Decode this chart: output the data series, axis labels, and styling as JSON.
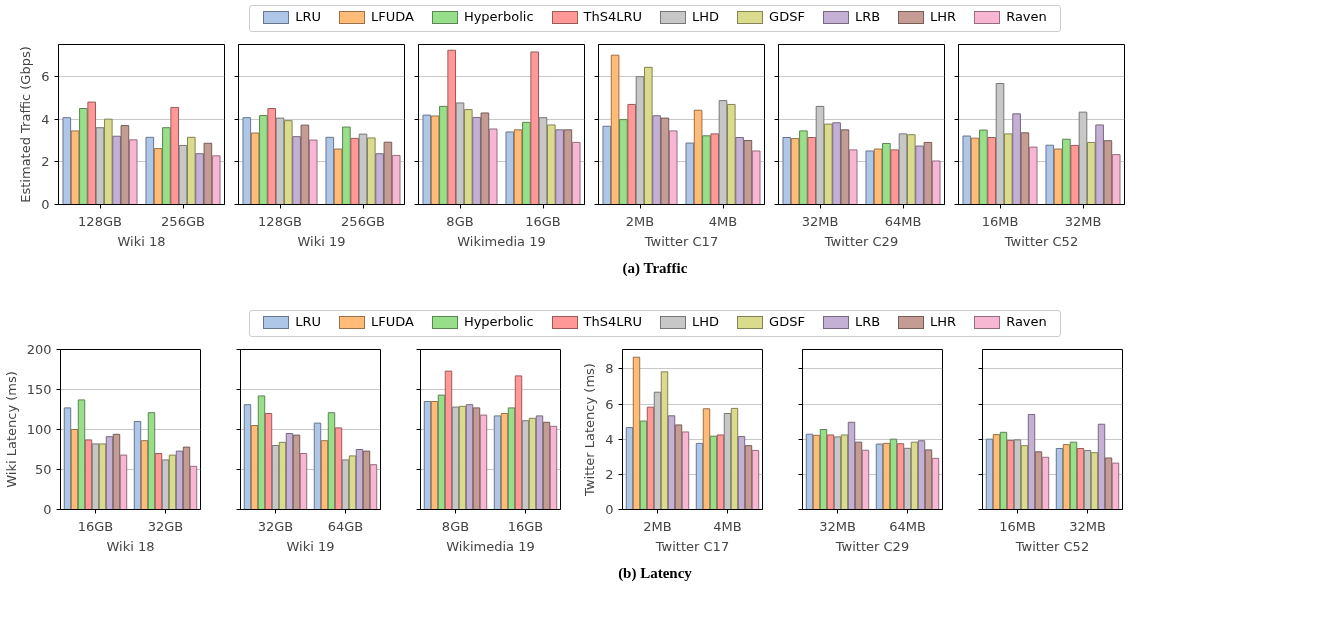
{
  "chart_data": [
    {
      "type": "bar",
      "xlabel": "Wiki 18",
      "ylabel": "Estimated Traffic (Gbps)",
      "categories": [
        "128GB",
        "256GB"
      ],
      "ylim": [
        0,
        7.5
      ],
      "yticks": [
        0,
        2,
        4,
        6
      ],
      "grid": "y",
      "legend": "top",
      "annotations": [
        "(a) Traffic"
      ],
      "series": [
        {
          "name": "LRU",
          "color": "#aec7e8",
          "values": [
            4.07,
            3.15
          ]
        },
        {
          "name": "LFUDA",
          "color": "#ffbb78",
          "values": [
            3.45,
            2.62
          ]
        },
        {
          "name": "Hyperbolic",
          "color": "#98df8a",
          "values": [
            4.5,
            3.6
          ]
        },
        {
          "name": "ThS4LRU",
          "color": "#ff9896",
          "values": [
            4.8,
            4.55
          ]
        },
        {
          "name": "LHD",
          "color": "#c7c7c7",
          "values": [
            3.6,
            2.77
          ]
        },
        {
          "name": "GDSF",
          "color": "#dbdb8d",
          "values": [
            4.0,
            3.15
          ]
        },
        {
          "name": "LRB",
          "color": "#c5b0d5",
          "values": [
            3.2,
            2.38
          ]
        },
        {
          "name": "LHR",
          "color": "#c49c94",
          "values": [
            3.7,
            2.87
          ]
        },
        {
          "name": "Raven",
          "color": "#f7b6d2",
          "values": [
            3.03,
            2.28
          ]
        }
      ]
    },
    {
      "type": "bar",
      "xlabel": "Wiki 19",
      "categories": [
        "128GB",
        "256GB"
      ],
      "ylim": [
        0,
        7.5
      ],
      "yticks": [
        0,
        2,
        4,
        6
      ],
      "grid": "y",
      "tick_labels": "x",
      "series": [
        {
          "color": "#aec7e8",
          "values": [
            4.07,
            3.15
          ]
        },
        {
          "color": "#ffbb78",
          "values": [
            3.35,
            2.6
          ]
        },
        {
          "color": "#98df8a",
          "values": [
            4.17,
            3.63
          ]
        },
        {
          "color": "#ff9896",
          "values": [
            4.5,
            3.1
          ]
        },
        {
          "color": "#c7c7c7",
          "values": [
            4.05,
            3.3
          ]
        },
        {
          "color": "#dbdb8d",
          "values": [
            3.93,
            3.12
          ]
        },
        {
          "color": "#c5b0d5",
          "values": [
            3.18,
            2.38
          ]
        },
        {
          "color": "#c49c94",
          "values": [
            3.72,
            2.92
          ]
        },
        {
          "color": "#f7b6d2",
          "values": [
            3.02,
            2.3
          ]
        }
      ]
    },
    {
      "type": "bar",
      "xlabel": "Wikimedia 19",
      "categories": [
        "8GB",
        "16GB"
      ],
      "ylim": [
        0,
        7.5
      ],
      "yticks": [
        0,
        2,
        4,
        6
      ],
      "grid": "y",
      "tick_labels": "x",
      "series": [
        {
          "color": "#aec7e8",
          "values": [
            4.19,
            3.4
          ]
        },
        {
          "color": "#ffbb78",
          "values": [
            4.15,
            3.5
          ]
        },
        {
          "color": "#98df8a",
          "values": [
            4.6,
            3.85
          ]
        },
        {
          "color": "#ff9896",
          "values": [
            7.23,
            7.15
          ]
        },
        {
          "color": "#c7c7c7",
          "values": [
            4.76,
            4.07
          ]
        },
        {
          "color": "#dbdb8d",
          "values": [
            4.45,
            3.73
          ]
        },
        {
          "color": "#c5b0d5",
          "values": [
            4.08,
            3.5
          ]
        },
        {
          "color": "#c49c94",
          "values": [
            4.29,
            3.5
          ]
        },
        {
          "color": "#f7b6d2",
          "values": [
            3.54,
            2.91
          ]
        }
      ]
    },
    {
      "type": "bar",
      "xlabel": "Twitter C17",
      "categories": [
        "2MB",
        "4MB"
      ],
      "ylim": [
        0,
        7.5
      ],
      "yticks": [
        0,
        2,
        4,
        6
      ],
      "grid": "y",
      "tick_labels": "x",
      "series": [
        {
          "color": "#aec7e8",
          "values": [
            3.67,
            2.88
          ]
        },
        {
          "color": "#ffbb78",
          "values": [
            7.0,
            4.42
          ]
        },
        {
          "color": "#98df8a",
          "values": [
            3.98,
            3.22
          ]
        },
        {
          "color": "#ff9896",
          "values": [
            4.69,
            3.31
          ]
        },
        {
          "color": "#c7c7c7",
          "values": [
            5.99,
            4.87
          ]
        },
        {
          "color": "#dbdb8d",
          "values": [
            6.43,
            4.69
          ]
        },
        {
          "color": "#c5b0d5",
          "values": [
            4.16,
            3.14
          ]
        },
        {
          "color": "#c49c94",
          "values": [
            4.05,
            3.0
          ]
        },
        {
          "color": "#f7b6d2",
          "values": [
            3.45,
            2.51
          ]
        }
      ]
    },
    {
      "type": "bar",
      "xlabel": "Twitter C29",
      "categories": [
        "32MB",
        "64MB"
      ],
      "ylim": [
        0,
        7.5
      ],
      "yticks": [
        0,
        2,
        4,
        6
      ],
      "grid": "y",
      "tick_labels": "x",
      "series": [
        {
          "color": "#aec7e8",
          "values": [
            3.14,
            2.51
          ]
        },
        {
          "color": "#ffbb78",
          "values": [
            3.09,
            2.6
          ]
        },
        {
          "color": "#98df8a",
          "values": [
            3.45,
            2.86
          ]
        },
        {
          "color": "#ff9896",
          "values": [
            3.14,
            2.56
          ]
        },
        {
          "color": "#c7c7c7",
          "values": [
            4.6,
            3.31
          ]
        },
        {
          "color": "#dbdb8d",
          "values": [
            3.77,
            3.27
          ]
        },
        {
          "color": "#c5b0d5",
          "values": [
            3.83,
            2.74
          ]
        },
        {
          "color": "#c49c94",
          "values": [
            3.5,
            2.91
          ]
        },
        {
          "color": "#f7b6d2",
          "values": [
            2.56,
            2.04
          ]
        }
      ]
    },
    {
      "type": "bar",
      "xlabel": "Twitter C52",
      "categories": [
        "16MB",
        "32MB"
      ],
      "ylim": [
        0,
        7.5
      ],
      "yticks": [
        0,
        2,
        4,
        6
      ],
      "grid": "y",
      "tick_labels": "x",
      "series": [
        {
          "color": "#aec7e8",
          "values": [
            3.21,
            2.78
          ]
        },
        {
          "color": "#ffbb78",
          "values": [
            3.11,
            2.6
          ]
        },
        {
          "color": "#98df8a",
          "values": [
            3.49,
            3.06
          ]
        },
        {
          "color": "#ff9896",
          "values": [
            3.14,
            2.77
          ]
        },
        {
          "color": "#c7c7c7",
          "values": [
            5.67,
            4.33
          ]
        },
        {
          "color": "#dbdb8d",
          "values": [
            3.31,
            2.91
          ]
        },
        {
          "color": "#c5b0d5",
          "values": [
            4.25,
            3.73
          ]
        },
        {
          "color": "#c49c94",
          "values": [
            3.36,
            2.99
          ]
        },
        {
          "color": "#f7b6d2",
          "values": [
            2.69,
            2.34
          ]
        }
      ]
    },
    {
      "type": "bar",
      "xlabel": "Wiki 18",
      "ylabel": "Wiki Latency (ms)",
      "categories": [
        "16GB",
        "32GB"
      ],
      "ylim": [
        0,
        200
      ],
      "yticks": [
        0,
        50,
        100,
        150,
        200
      ],
      "grid": "y",
      "legend": "top",
      "annotations": [
        "(b) Latency"
      ],
      "series": [
        {
          "name": "LRU",
          "color": "#aec7e8",
          "values": [
            127,
            110
          ]
        },
        {
          "name": "LFUDA",
          "color": "#ffbb78",
          "values": [
            100,
            86
          ]
        },
        {
          "name": "Hyperbolic",
          "color": "#98df8a",
          "values": [
            137,
            121
          ]
        },
        {
          "name": "ThS4LRU",
          "color": "#ff9896",
          "values": [
            87,
            70
          ]
        },
        {
          "name": "LHD",
          "color": "#c7c7c7",
          "values": [
            82,
            62
          ]
        },
        {
          "name": "GDSF",
          "color": "#dbdb8d",
          "values": [
            82,
            68
          ]
        },
        {
          "name": "LRB",
          "color": "#c5b0d5",
          "values": [
            91,
            73
          ]
        },
        {
          "name": "LHR",
          "color": "#c49c94",
          "values": [
            94,
            78
          ]
        },
        {
          "name": "Raven",
          "color": "#f7b6d2",
          "values": [
            68,
            54
          ]
        }
      ]
    },
    {
      "type": "bar",
      "xlabel": "Wiki 19",
      "categories": [
        "32GB",
        "64GB"
      ],
      "ylim": [
        0,
        200
      ],
      "yticks": [
        0,
        50,
        100,
        150,
        200
      ],
      "grid": "y",
      "tick_labels": "x",
      "series": [
        {
          "color": "#aec7e8",
          "values": [
            131,
            108
          ]
        },
        {
          "color": "#ffbb78",
          "values": [
            105,
            86
          ]
        },
        {
          "color": "#98df8a",
          "values": [
            142,
            121
          ]
        },
        {
          "color": "#ff9896",
          "values": [
            120,
            102
          ]
        },
        {
          "color": "#c7c7c7",
          "values": [
            80,
            62
          ]
        },
        {
          "color": "#dbdb8d",
          "values": [
            84,
            67
          ]
        },
        {
          "color": "#c5b0d5",
          "values": [
            95,
            75
          ]
        },
        {
          "color": "#c49c94",
          "values": [
            93,
            73
          ]
        },
        {
          "color": "#f7b6d2",
          "values": [
            70,
            56
          ]
        }
      ]
    },
    {
      "type": "bar",
      "xlabel": "Wikimedia 19",
      "categories": [
        "8GB",
        "16GB"
      ],
      "ylim": [
        0,
        200
      ],
      "yticks": [
        0,
        50,
        100,
        150,
        200
      ],
      "grid": "y",
      "tick_labels": "x",
      "series": [
        {
          "color": "#aec7e8",
          "values": [
            135,
            117
          ]
        },
        {
          "color": "#ffbb78",
          "values": [
            135,
            120
          ]
        },
        {
          "color": "#98df8a",
          "values": [
            143,
            127
          ]
        },
        {
          "color": "#ff9896",
          "values": [
            173,
            167
          ]
        },
        {
          "color": "#c7c7c7",
          "values": [
            128,
            111
          ]
        },
        {
          "color": "#dbdb8d",
          "values": [
            129,
            114
          ]
        },
        {
          "color": "#c5b0d5",
          "values": [
            131,
            117
          ]
        },
        {
          "color": "#c49c94",
          "values": [
            127,
            109
          ]
        },
        {
          "color": "#f7b6d2",
          "values": [
            118,
            104
          ]
        }
      ]
    },
    {
      "type": "bar",
      "xlabel": "Twitter C17",
      "ylabel": "Twitter Latency (ms)",
      "categories": [
        "2MB",
        "4MB"
      ],
      "ylim": [
        0,
        9.1
      ],
      "yticks": [
        0,
        2,
        4,
        6,
        8
      ],
      "grid": "y",
      "series": [
        {
          "color": "#aec7e8",
          "values": [
            4.66,
            3.76
          ]
        },
        {
          "color": "#ffbb78",
          "values": [
            8.66,
            5.73
          ]
        },
        {
          "color": "#98df8a",
          "values": [
            5.03,
            4.17
          ]
        },
        {
          "color": "#ff9896",
          "values": [
            5.82,
            4.24
          ]
        },
        {
          "color": "#c7c7c7",
          "values": [
            6.67,
            5.46
          ]
        },
        {
          "color": "#dbdb8d",
          "values": [
            7.83,
            5.75
          ]
        },
        {
          "color": "#c5b0d5",
          "values": [
            5.33,
            4.15
          ]
        },
        {
          "color": "#c49c94",
          "values": [
            4.81,
            3.63
          ]
        },
        {
          "color": "#f7b6d2",
          "values": [
            4.41,
            3.36
          ]
        }
      ]
    },
    {
      "type": "bar",
      "xlabel": "Twitter C29",
      "categories": [
        "32MB",
        "64MB"
      ],
      "ylim": [
        0,
        9.1
      ],
      "yticks": [
        0,
        2,
        4,
        6,
        8
      ],
      "grid": "y",
      "tick_labels": "x",
      "series": [
        {
          "color": "#aec7e8",
          "values": [
            4.28,
            3.72
          ]
        },
        {
          "color": "#ffbb78",
          "values": [
            4.22,
            3.76
          ]
        },
        {
          "color": "#98df8a",
          "values": [
            4.55,
            4.0
          ]
        },
        {
          "color": "#ff9896",
          "values": [
            4.24,
            3.74
          ]
        },
        {
          "color": "#c7c7c7",
          "values": [
            4.13,
            3.48
          ]
        },
        {
          "color": "#dbdb8d",
          "values": [
            4.24,
            3.83
          ]
        },
        {
          "color": "#c5b0d5",
          "values": [
            4.96,
            3.91
          ]
        },
        {
          "color": "#c49c94",
          "values": [
            3.83,
            3.39
          ]
        },
        {
          "color": "#f7b6d2",
          "values": [
            3.37,
            2.91
          ]
        }
      ]
    },
    {
      "type": "bar",
      "xlabel": "Twitter C52",
      "categories": [
        "16MB",
        "32MB"
      ],
      "ylim": [
        0,
        9.1
      ],
      "yticks": [
        0,
        2,
        4,
        6,
        8
      ],
      "grid": "y",
      "tick_labels": "x",
      "series": [
        {
          "color": "#aec7e8",
          "values": [
            4.0,
            3.47
          ]
        },
        {
          "color": "#ffbb78",
          "values": [
            4.26,
            3.69
          ]
        },
        {
          "color": "#98df8a",
          "values": [
            4.39,
            3.83
          ]
        },
        {
          "color": "#ff9896",
          "values": [
            3.93,
            3.47
          ]
        },
        {
          "color": "#c7c7c7",
          "values": [
            3.96,
            3.35
          ]
        },
        {
          "color": "#dbdb8d",
          "values": [
            3.63,
            3.23
          ]
        },
        {
          "color": "#c5b0d5",
          "values": [
            5.4,
            4.85
          ]
        },
        {
          "color": "#c49c94",
          "values": [
            3.28,
            2.93
          ]
        },
        {
          "color": "#f7b6d2",
          "values": [
            2.97,
            2.64
          ]
        }
      ]
    }
  ]
}
